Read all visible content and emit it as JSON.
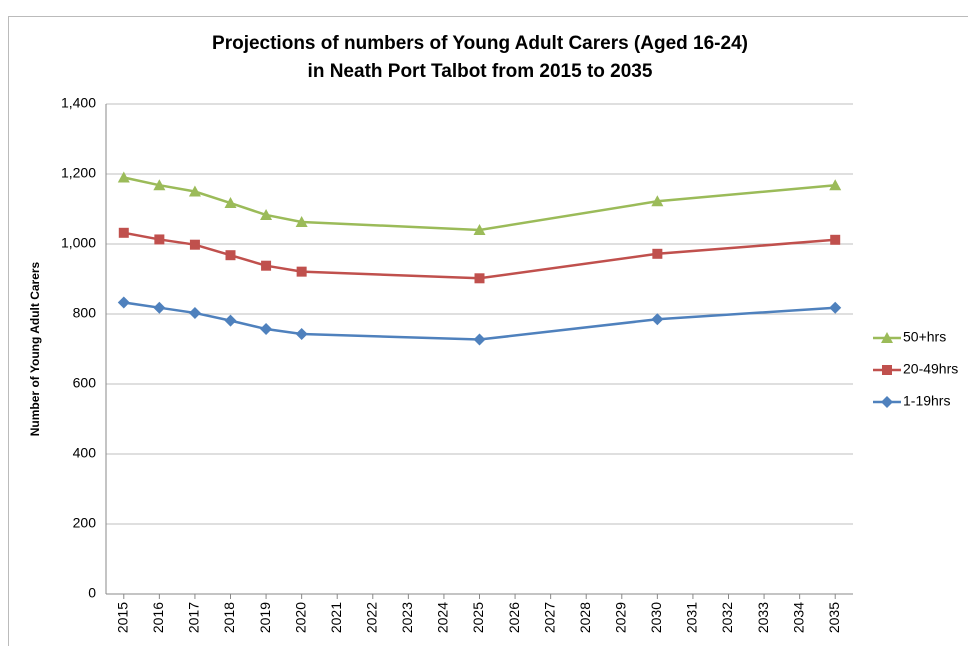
{
  "chart_data": {
    "type": "line",
    "title": [
      "Projections of numbers of Young Adult Carers (Aged 16-24)",
      "in Neath Port Talbot from 2015 to 2035"
    ],
    "y_label": "Number of Young Adult Carers",
    "x": [
      2015,
      2016,
      2017,
      2018,
      2019,
      2020,
      2025,
      2030,
      2035
    ],
    "xlim": [
      2014.5,
      2035.5
    ],
    "xticks": [
      2015,
      2016,
      2017,
      2018,
      2019,
      2020,
      2021,
      2022,
      2023,
      2024,
      2025,
      2026,
      2027,
      2028,
      2029,
      2030,
      2031,
      2032,
      2033,
      2034,
      2035
    ],
    "ylim": [
      0,
      1400
    ],
    "yticks": [
      0,
      200,
      400,
      600,
      800,
      {
        "value": 1000,
        "label": "1,000"
      },
      {
        "value": 1200,
        "label": "1,200"
      },
      {
        "value": 1400,
        "label": "1,400"
      }
    ],
    "grid": true,
    "legend": "right",
    "series": [
      {
        "name": "50+hrs",
        "color": "#9bbb59",
        "marker": "triangle",
        "values": [
          1190,
          1168,
          1150,
          1117,
          1083,
          1063,
          1040,
          1122,
          1168
        ]
      },
      {
        "name": "20-49hrs",
        "color": "#c0504d",
        "marker": "square",
        "values": [
          1032,
          1013,
          998,
          968,
          938,
          921,
          902,
          972,
          1012
        ]
      },
      {
        "name": "1-19hrs",
        "color": "#4f81bd",
        "marker": "diamond",
        "values": [
          833,
          818,
          803,
          781,
          757,
          743,
          727,
          785,
          818
        ]
      }
    ]
  }
}
